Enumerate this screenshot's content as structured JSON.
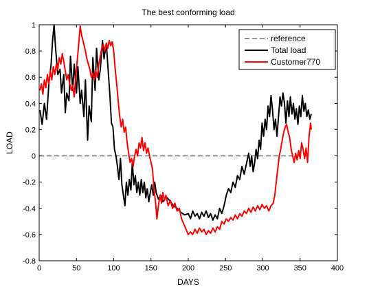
{
  "chart_data": {
    "type": "line",
    "title": "The best conforming load",
    "xlabel": "DAYS",
    "ylabel": "LOAD",
    "xlim": [
      0,
      400
    ],
    "ylim": [
      -0.8,
      1
    ],
    "xticks": [
      "0",
      "50",
      "100",
      "150",
      "200",
      "250",
      "300",
      "350",
      "400"
    ],
    "yticks": [
      "-0.8",
      "-0.6",
      "-0.4",
      "-0.2",
      "0",
      "0.2",
      "0.4",
      "0.6",
      "0.8",
      "1"
    ],
    "grid": false,
    "legend_position": "top-right",
    "series": [
      {
        "name": "reference",
        "color": "#555555",
        "style": "dashed",
        "points": [
          [
            0,
            0
          ],
          [
            365,
            0
          ]
        ]
      },
      {
        "name": "Total load",
        "color": "#000000",
        "style": "solid",
        "points": [
          [
            1,
            0.35
          ],
          [
            4,
            0.24
          ],
          [
            7,
            0.4
          ],
          [
            10,
            0.28
          ],
          [
            13,
            0.55
          ],
          [
            16,
            0.7
          ],
          [
            18,
            0.88
          ],
          [
            20,
            1.0
          ],
          [
            22,
            0.82
          ],
          [
            25,
            0.62
          ],
          [
            28,
            0.66
          ],
          [
            30,
            0.48
          ],
          [
            33,
            0.62
          ],
          [
            35,
            0.33
          ],
          [
            37,
            0.48
          ],
          [
            40,
            0.42
          ],
          [
            42,
            0.76
          ],
          [
            45,
            0.5
          ],
          [
            47,
            0.7
          ],
          [
            50,
            0.48
          ],
          [
            52,
            0.68
          ],
          [
            55,
            0.4
          ],
          [
            57,
            0.5
          ],
          [
            60,
            0.3
          ],
          [
            62,
            0.58
          ],
          [
            65,
            0.12
          ],
          [
            67,
            0.38
          ],
          [
            70,
            0.26
          ],
          [
            72,
            0.75
          ],
          [
            75,
            0.5
          ],
          [
            77,
            0.82
          ],
          [
            80,
            0.58
          ],
          [
            82,
            0.66
          ],
          [
            85,
            0.88
          ],
          [
            87,
            0.74
          ],
          [
            90,
            0.86
          ],
          [
            92,
            0.7
          ],
          [
            95,
            0.45
          ],
          [
            97,
            0.25
          ],
          [
            99,
            0.22
          ],
          [
            101,
            0.05
          ],
          [
            103,
            0.0
          ],
          [
            105,
            -0.08
          ],
          [
            107,
            -0.18
          ],
          [
            109,
            -0.02
          ],
          [
            111,
            -0.22
          ],
          [
            113,
            -0.3
          ],
          [
            115,
            -0.38
          ],
          [
            117,
            -0.2
          ],
          [
            119,
            -0.3
          ],
          [
            121,
            -0.18
          ],
          [
            123,
            -0.26
          ],
          [
            125,
            -0.05
          ],
          [
            127,
            -0.22
          ],
          [
            129,
            -0.15
          ],
          [
            131,
            -0.28
          ],
          [
            133,
            -0.2
          ],
          [
            135,
            -0.3
          ],
          [
            137,
            -0.18
          ],
          [
            139,
            -0.28
          ],
          [
            141,
            -0.2
          ],
          [
            143,
            -0.32
          ],
          [
            145,
            -0.25
          ],
          [
            147,
            -0.35
          ],
          [
            149,
            -0.28
          ],
          [
            151,
            -0.22
          ],
          [
            153,
            -0.3
          ],
          [
            155,
            -0.2
          ],
          [
            157,
            -0.28
          ],
          [
            160,
            -0.33
          ],
          [
            163,
            -0.3
          ],
          [
            166,
            -0.35
          ],
          [
            170,
            -0.31
          ],
          [
            175,
            -0.34
          ],
          [
            180,
            -0.38
          ],
          [
            185,
            -0.4
          ],
          [
            190,
            -0.43
          ],
          [
            195,
            -0.45
          ],
          [
            200,
            -0.44
          ],
          [
            203,
            -0.48
          ],
          [
            206,
            -0.42
          ],
          [
            209,
            -0.46
          ],
          [
            212,
            -0.44
          ],
          [
            215,
            -0.48
          ],
          [
            218,
            -0.43
          ],
          [
            221,
            -0.46
          ],
          [
            224,
            -0.42
          ],
          [
            227,
            -0.47
          ],
          [
            230,
            -0.44
          ],
          [
            233,
            -0.49
          ],
          [
            236,
            -0.45
          ],
          [
            239,
            -0.48
          ],
          [
            242,
            -0.4
          ],
          [
            245,
            -0.44
          ],
          [
            248,
            -0.38
          ],
          [
            251,
            -0.3
          ],
          [
            254,
            -0.25
          ],
          [
            257,
            -0.28
          ],
          [
            260,
            -0.2
          ],
          [
            263,
            -0.24
          ],
          [
            266,
            -0.15
          ],
          [
            269,
            -0.18
          ],
          [
            272,
            -0.08
          ],
          [
            275,
            -0.14
          ],
          [
            278,
            -0.06
          ],
          [
            281,
            0.02
          ],
          [
            283,
            -0.08
          ],
          [
            285,
            0.0
          ],
          [
            287,
            -0.12
          ],
          [
            289,
            -0.05
          ],
          [
            291,
            0.05
          ],
          [
            293,
            -0.02
          ],
          [
            295,
            0.12
          ],
          [
            297,
            0.05
          ],
          [
            299,
            0.25
          ],
          [
            301,
            0.15
          ],
          [
            303,
            0.28
          ],
          [
            305,
            0.2
          ],
          [
            307,
            0.38
          ],
          [
            309,
            0.3
          ],
          [
            311,
            0.46
          ],
          [
            313,
            0.35
          ],
          [
            315,
            0.2
          ],
          [
            317,
            0.28
          ],
          [
            319,
            0.15
          ],
          [
            321,
            0.3
          ],
          [
            323,
            0.45
          ],
          [
            325,
            0.38
          ],
          [
            327,
            0.48
          ],
          [
            329,
            0.4
          ],
          [
            331,
            0.25
          ],
          [
            333,
            0.42
          ],
          [
            335,
            0.3
          ],
          [
            337,
            0.45
          ],
          [
            339,
            0.32
          ],
          [
            341,
            0.4
          ],
          [
            343,
            0.28
          ],
          [
            345,
            0.36
          ],
          [
            347,
            0.24
          ],
          [
            349,
            0.38
          ],
          [
            351,
            0.3
          ],
          [
            353,
            0.46
          ],
          [
            355,
            0.34
          ],
          [
            357,
            0.4
          ],
          [
            359,
            0.3
          ],
          [
            361,
            0.35
          ],
          [
            363,
            0.28
          ],
          [
            365,
            0.32
          ]
        ]
      },
      {
        "name": "Customer770",
        "color": "#ff0000",
        "style": "solid",
        "points": [
          [
            1,
            0.5
          ],
          [
            3,
            0.55
          ],
          [
            5,
            0.47
          ],
          [
            7,
            0.58
          ],
          [
            9,
            0.52
          ],
          [
            11,
            0.62
          ],
          [
            13,
            0.55
          ],
          [
            15,
            0.65
          ],
          [
            17,
            0.58
          ],
          [
            19,
            0.68
          ],
          [
            21,
            0.62
          ],
          [
            23,
            0.7
          ],
          [
            25,
            0.66
          ],
          [
            27,
            0.75
          ],
          [
            29,
            0.7
          ],
          [
            31,
            0.78
          ],
          [
            33,
            0.72
          ],
          [
            35,
            0.65
          ],
          [
            37,
            0.58
          ],
          [
            39,
            0.62
          ],
          [
            41,
            0.55
          ],
          [
            43,
            0.5
          ],
          [
            45,
            0.54
          ],
          [
            47,
            0.45
          ],
          [
            49,
            0.6
          ],
          [
            51,
            0.72
          ],
          [
            53,
            0.85
          ],
          [
            55,
            0.99
          ],
          [
            57,
            0.92
          ],
          [
            60,
            0.85
          ],
          [
            62,
            0.8
          ],
          [
            64,
            0.74
          ],
          [
            66,
            0.7
          ],
          [
            68,
            0.66
          ],
          [
            70,
            0.6
          ],
          [
            72,
            0.63
          ],
          [
            74,
            0.58
          ],
          [
            76,
            0.65
          ],
          [
            78,
            0.6
          ],
          [
            80,
            0.7
          ],
          [
            82,
            0.76
          ],
          [
            84,
            0.82
          ],
          [
            86,
            0.85
          ],
          [
            88,
            0.8
          ],
          [
            90,
            0.86
          ],
          [
            92,
            0.82
          ],
          [
            94,
            0.88
          ],
          [
            96,
            0.84
          ],
          [
            98,
            0.87
          ],
          [
            100,
            0.8
          ],
          [
            102,
            0.66
          ],
          [
            104,
            0.55
          ],
          [
            106,
            0.42
          ],
          [
            108,
            0.3
          ],
          [
            110,
            0.22
          ],
          [
            112,
            0.28
          ],
          [
            114,
            0.18
          ],
          [
            116,
            0.22
          ],
          [
            118,
            0.1
          ],
          [
            120,
            0.02
          ],
          [
            122,
            -0.05
          ],
          [
            124,
            -0.02
          ],
          [
            126,
            -0.08
          ],
          [
            128,
            0.0
          ],
          [
            130,
            0.05
          ],
          [
            132,
            0.0
          ],
          [
            134,
            0.1
          ],
          [
            136,
            0.06
          ],
          [
            138,
            0.14
          ],
          [
            140,
            0.04
          ],
          [
            142,
            0.1
          ],
          [
            144,
            0.02
          ],
          [
            146,
            0.06
          ],
          [
            148,
            0.0
          ],
          [
            150,
            -0.05
          ],
          [
            152,
            -0.1
          ],
          [
            154,
            -0.25
          ],
          [
            156,
            -0.35
          ],
          [
            158,
            -0.48
          ],
          [
            160,
            -0.38
          ],
          [
            162,
            -0.3
          ],
          [
            164,
            -0.36
          ],
          [
            166,
            -0.28
          ],
          [
            168,
            -0.34
          ],
          [
            170,
            -0.3
          ],
          [
            173,
            -0.38
          ],
          [
            176,
            -0.34
          ],
          [
            179,
            -0.4
          ],
          [
            182,
            -0.36
          ],
          [
            185,
            -0.42
          ],
          [
            188,
            -0.4
          ],
          [
            191,
            -0.48
          ],
          [
            194,
            -0.52
          ],
          [
            197,
            -0.56
          ],
          [
            200,
            -0.6
          ],
          [
            203,
            -0.58
          ],
          [
            206,
            -0.6
          ],
          [
            209,
            -0.56
          ],
          [
            212,
            -0.59
          ],
          [
            215,
            -0.55
          ],
          [
            218,
            -0.58
          ],
          [
            221,
            -0.56
          ],
          [
            224,
            -0.6
          ],
          [
            227,
            -0.57
          ],
          [
            230,
            -0.59
          ],
          [
            233,
            -0.55
          ],
          [
            236,
            -0.58
          ],
          [
            239,
            -0.54
          ],
          [
            242,
            -0.56
          ],
          [
            245,
            -0.5
          ],
          [
            248,
            -0.52
          ],
          [
            251,
            -0.48
          ],
          [
            254,
            -0.5
          ],
          [
            257,
            -0.47
          ],
          [
            260,
            -0.49
          ],
          [
            263,
            -0.45
          ],
          [
            266,
            -0.48
          ],
          [
            269,
            -0.44
          ],
          [
            272,
            -0.46
          ],
          [
            275,
            -0.42
          ],
          [
            278,
            -0.44
          ],
          [
            281,
            -0.4
          ],
          [
            284,
            -0.43
          ],
          [
            287,
            -0.39
          ],
          [
            290,
            -0.42
          ],
          [
            293,
            -0.38
          ],
          [
            296,
            -0.41
          ],
          [
            299,
            -0.37
          ],
          [
            302,
            -0.4
          ],
          [
            305,
            -0.38
          ],
          [
            308,
            -0.42
          ],
          [
            311,
            -0.38
          ],
          [
            314,
            -0.36
          ],
          [
            316,
            -0.3
          ],
          [
            318,
            -0.2
          ],
          [
            320,
            -0.1
          ],
          [
            322,
            0.0
          ],
          [
            324,
            0.05
          ],
          [
            326,
            0.12
          ],
          [
            328,
            0.18
          ],
          [
            330,
            0.22
          ],
          [
            332,
            0.24
          ],
          [
            334,
            0.18
          ],
          [
            336,
            0.14
          ],
          [
            338,
            0.05
          ],
          [
            340,
            0.0
          ],
          [
            342,
            -0.05
          ],
          [
            344,
            0.02
          ],
          [
            346,
            -0.03
          ],
          [
            348,
            0.04
          ],
          [
            350,
            -0.02
          ],
          [
            352,
            0.1
          ],
          [
            354,
            0.05
          ],
          [
            356,
            -0.02
          ],
          [
            358,
            0.06
          ],
          [
            360,
            -0.05
          ],
          [
            362,
            0.15
          ],
          [
            364,
            0.25
          ],
          [
            365,
            0.2
          ]
        ]
      }
    ]
  }
}
